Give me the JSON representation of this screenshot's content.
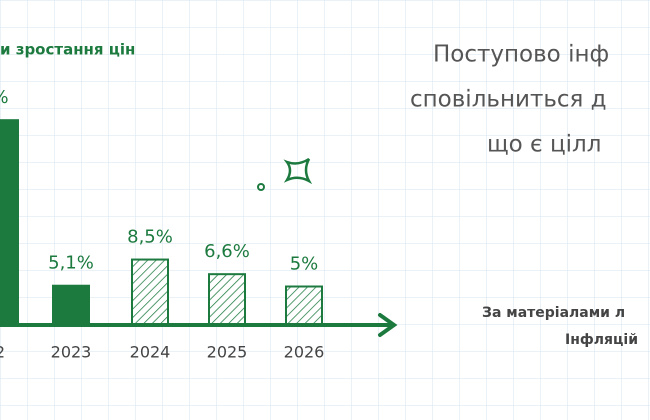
{
  "chart_data": {
    "type": "bar",
    "subtitle": "и зростання цін",
    "categories": [
      "2",
      "2023",
      "2024",
      "2025",
      "2026"
    ],
    "values": [
      26.6,
      5.1,
      8.5,
      6.6,
      5
    ],
    "value_labels": [
      "%",
      "5,1%",
      "8,5%",
      "6,6%",
      "5%"
    ],
    "bar_styles": [
      "solid",
      "solid",
      "hatched",
      "hatched",
      "hatched"
    ],
    "color": "#1c7a3f",
    "ylim": [
      0,
      30
    ]
  },
  "text": {
    "heading": [
      "Поступово інф",
      "сповільниться д",
      "що є цілл"
    ],
    "source": [
      "За матеріалами л",
      "Інфляцій"
    ]
  }
}
